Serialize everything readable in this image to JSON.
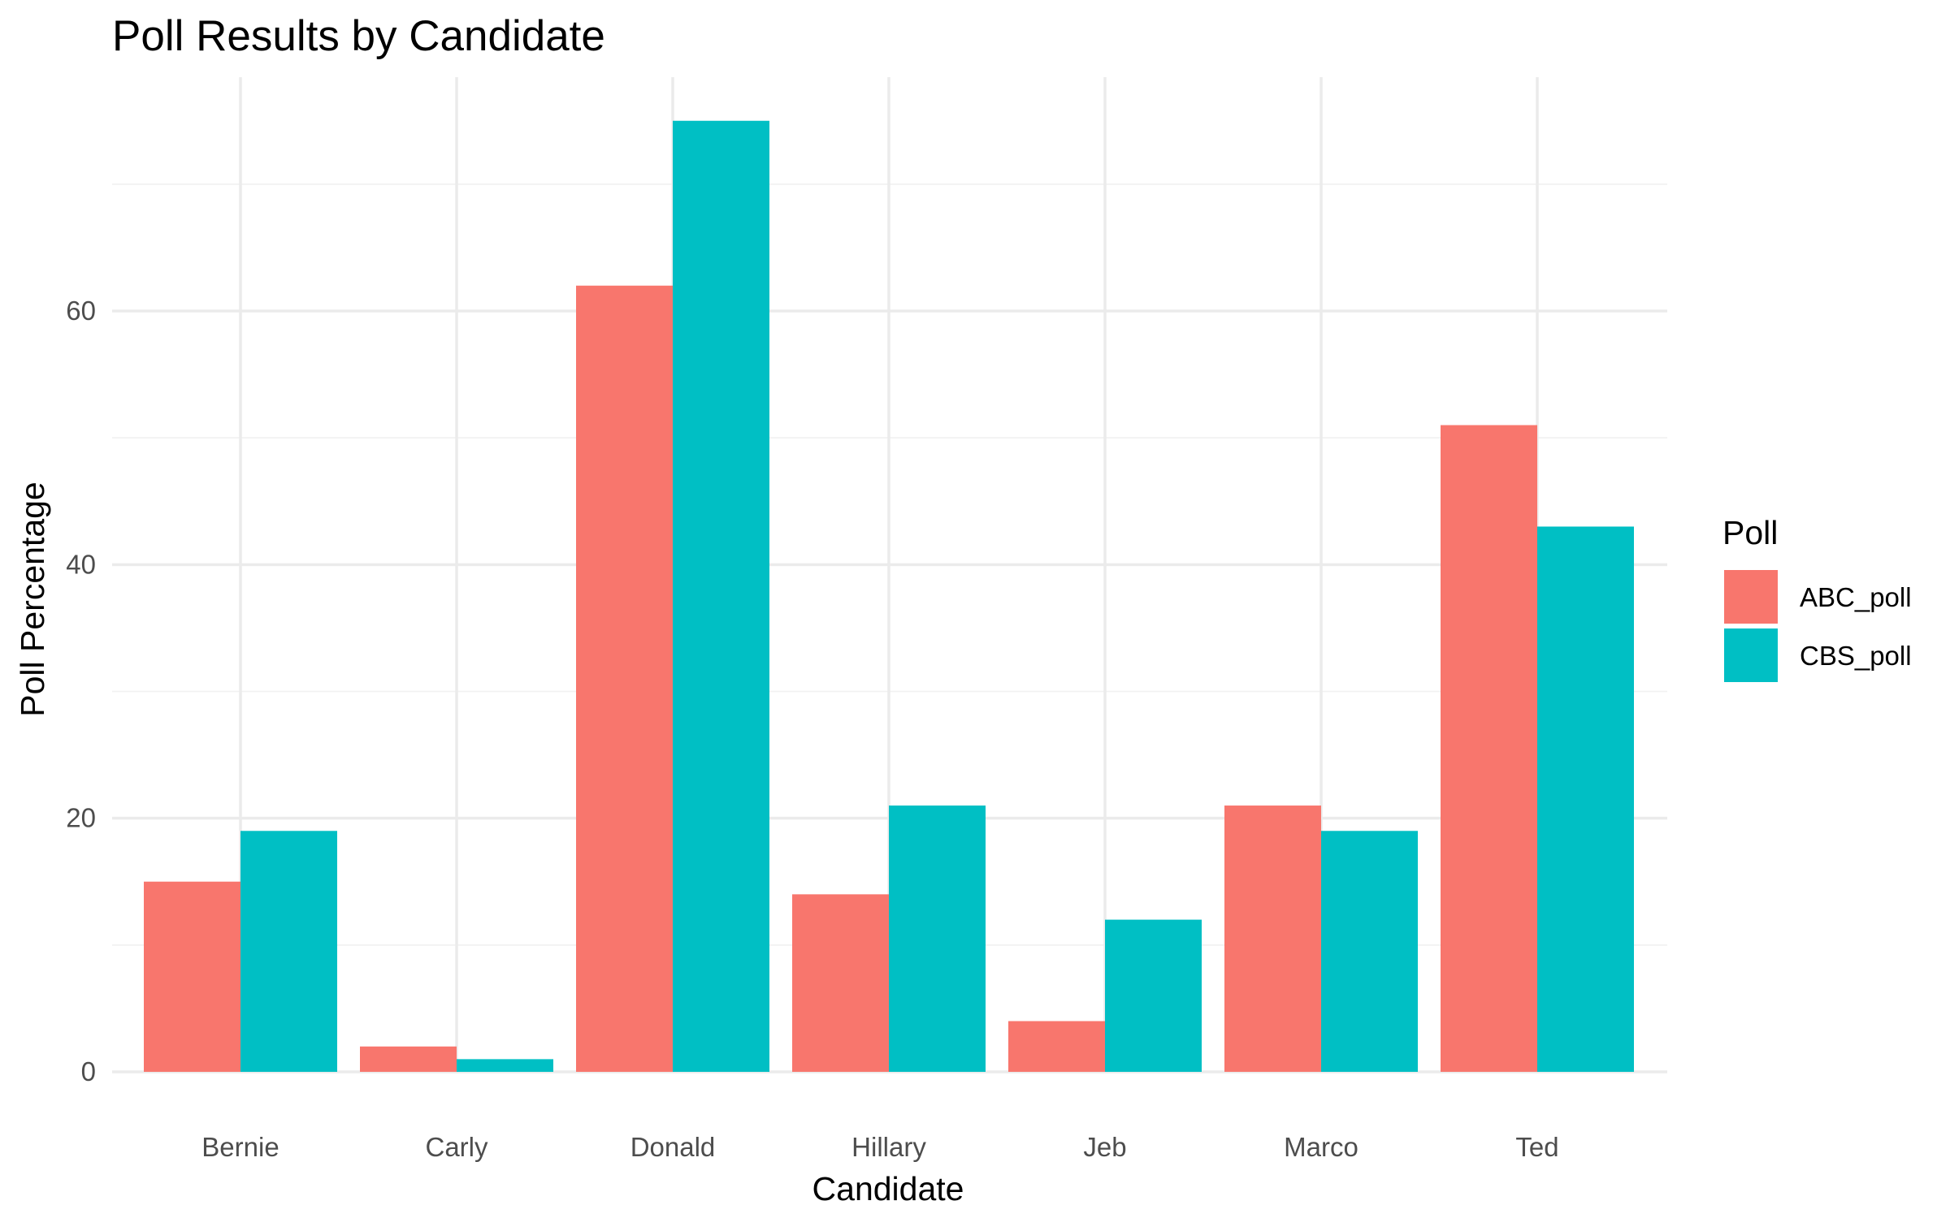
{
  "chart_data": {
    "type": "bar",
    "title": "Poll Results by Candidate",
    "xlabel": "Candidate",
    "ylabel": "Poll Percentage",
    "categories": [
      "Bernie",
      "Carly",
      "Donald",
      "Hillary",
      "Jeb",
      "Marco",
      "Ted"
    ],
    "series": [
      {
        "name": "ABC_poll",
        "color": "#F8766D",
        "values": [
          15,
          2,
          62,
          14,
          4,
          21,
          51
        ]
      },
      {
        "name": "CBS_poll",
        "color": "#00BFC4",
        "values": [
          19,
          1,
          75,
          21,
          12,
          19,
          43
        ]
      }
    ],
    "ylim": [
      0,
      78
    ],
    "yticks": [
      0,
      20,
      40,
      60
    ],
    "ytick_labels": [
      "0",
      "20",
      "40",
      "60"
    ],
    "grid": true,
    "legend": {
      "title": "Poll",
      "placement": "right"
    }
  }
}
